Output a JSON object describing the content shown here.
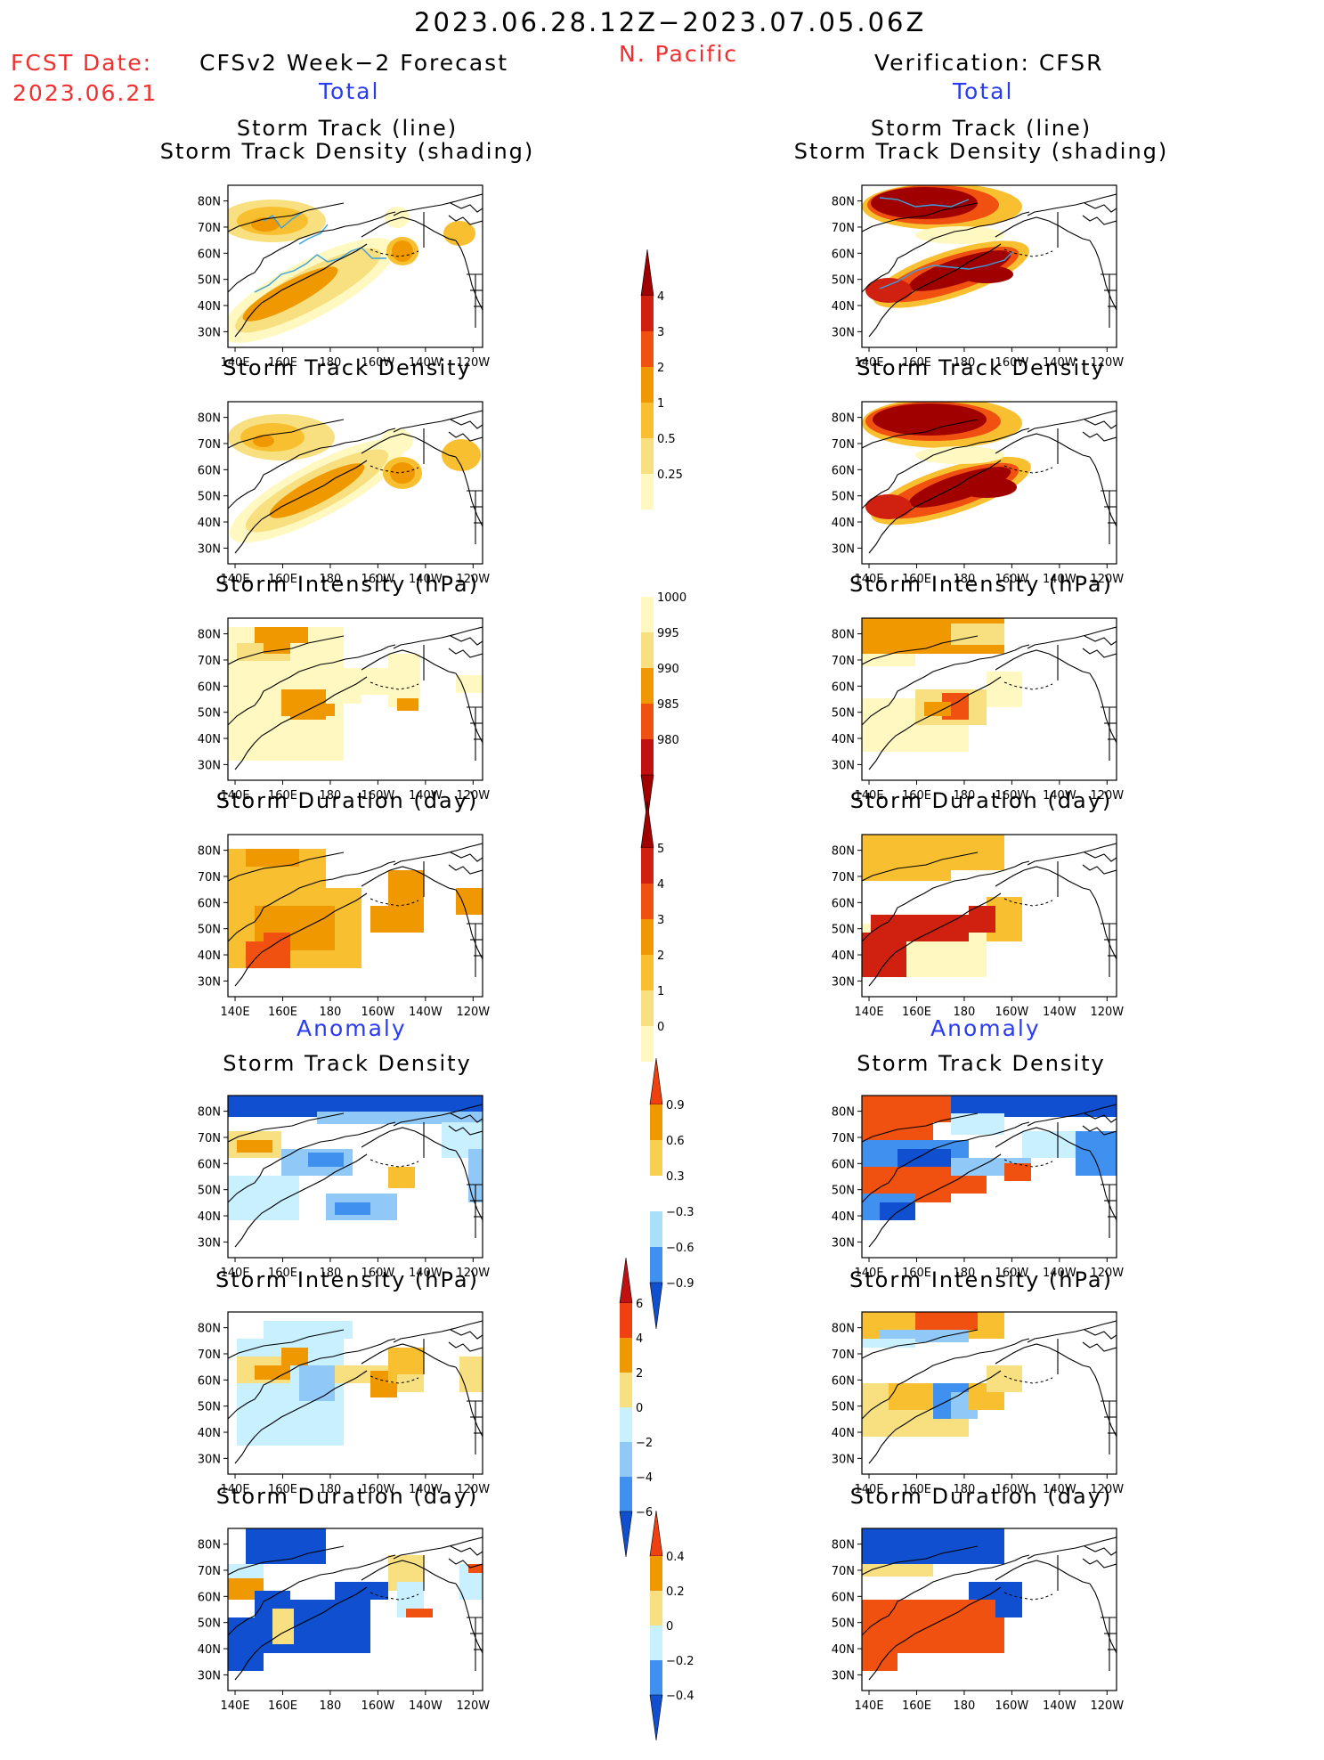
{
  "header": {
    "period": "2023.06.28.12Z−2023.07.05.06Z",
    "region": "N. Pacific",
    "fcst_label": "FCST Date:",
    "fcst_date": "2023.06.21",
    "left_title": "CFSv2 Week−2 Forecast",
    "right_title": "Verification: CFSR",
    "total_label": "Total",
    "anomaly_label": "Anomaly"
  },
  "panel_titles": {
    "track_line": "Storm Track (line)",
    "track_density_shading": "Storm Track Density (shading)",
    "track_density": "Storm Track Density",
    "intensity": "Storm Intensity (hPa)",
    "duration": "Storm Duration (day)"
  },
  "map_axes": {
    "lon_labels": [
      "140E",
      "160E",
      "180",
      "160W",
      "140W",
      "120W"
    ],
    "lat_labels": [
      "80N",
      "70N",
      "60N",
      "50N",
      "40N",
      "30N"
    ]
  },
  "colorbars": {
    "density": {
      "labels": [
        "4",
        "3",
        "2",
        "1",
        "0.5",
        "0.25"
      ],
      "colors": [
        "#a00000",
        "#d02010",
        "#f05010",
        "#f09800",
        "#f8c030",
        "#f8e080",
        "#fff8c0"
      ]
    },
    "intensity": {
      "labels": [
        "1000",
        "995",
        "990",
        "985",
        "980"
      ],
      "colors": [
        "#fff8c0",
        "#f8e080",
        "#f09800",
        "#f05010",
        "#c01010",
        "#a00000"
      ]
    },
    "duration": {
      "labels": [
        "5",
        "4",
        "3",
        "2",
        "1",
        "0"
      ],
      "colors": [
        "#a00000",
        "#d02010",
        "#f05010",
        "#f09800",
        "#f8c030",
        "#f8e080",
        "#fff8c0"
      ]
    },
    "anom_density": {
      "labels": [
        "0.9",
        "0.6",
        "0.3",
        "−0.3",
        "−0.6",
        "−0.9"
      ],
      "colors": [
        "#f04010",
        "#f09800",
        "#f8d050",
        "#ffffff",
        "#a8e0f8",
        "#4090f0",
        "#1050d0"
      ]
    },
    "anom_intensity": {
      "labels": [
        "6",
        "4",
        "2",
        "0",
        "−2",
        "−4",
        "−6"
      ],
      "colors": [
        "#c01010",
        "#f04010",
        "#f09800",
        "#f8e080",
        "#c8f0ff",
        "#90c8f8",
        "#4090f0",
        "#1050d0"
      ]
    },
    "anom_duration": {
      "labels": [
        "0.4",
        "0.2",
        "0",
        "−0.2",
        "−0.4"
      ],
      "colors": [
        "#f04010",
        "#f09800",
        "#f8e080",
        "#c8f0ff",
        "#4090f0",
        "#1050d0"
      ]
    }
  }
}
